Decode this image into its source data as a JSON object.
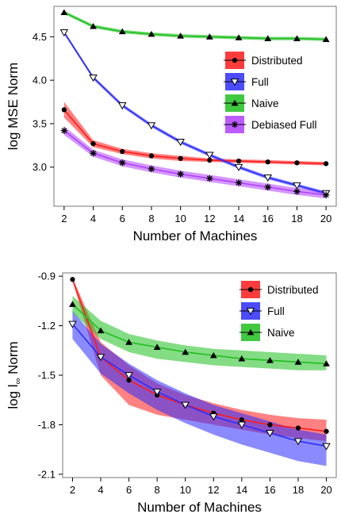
{
  "chart_data": [
    {
      "type": "line",
      "title": "",
      "xlabel": "Number of Machines",
      "ylabel": "log MSE Norm",
      "x": [
        2,
        4,
        6,
        8,
        10,
        12,
        14,
        16,
        18,
        20
      ],
      "xticks": [
        "2",
        "4",
        "6",
        "8",
        "10",
        "12",
        "14",
        "16",
        "18",
        "20"
      ],
      "xlim": [
        1.3,
        20.7
      ],
      "ylim": [
        2.55,
        4.85
      ],
      "yticks": [
        3.0,
        3.5,
        4.0,
        4.5
      ],
      "ytick_labels": [
        "3.0",
        "3.5",
        "4.0",
        "4.5"
      ],
      "legend_position": "right",
      "series": [
        {
          "name": "Distributed",
          "color": "#ff1a1a",
          "marker": "circle",
          "values": [
            3.66,
            3.27,
            3.18,
            3.13,
            3.1,
            3.08,
            3.07,
            3.06,
            3.05,
            3.04
          ],
          "band_upper": [
            3.75,
            3.31,
            3.21,
            3.16,
            3.13,
            3.1,
            3.09,
            3.08,
            3.07,
            3.06
          ],
          "band_lower": [
            3.57,
            3.23,
            3.15,
            3.1,
            3.07,
            3.06,
            3.05,
            3.04,
            3.03,
            3.02
          ]
        },
        {
          "name": "Full",
          "color": "#2b2bff",
          "marker": "triangle-down",
          "values": [
            4.55,
            4.03,
            3.71,
            3.48,
            3.29,
            3.14,
            3.0,
            2.88,
            2.79,
            2.7
          ],
          "band_upper": [
            4.57,
            4.05,
            3.73,
            3.5,
            3.31,
            3.16,
            3.02,
            2.9,
            2.81,
            2.72
          ],
          "band_lower": [
            4.53,
            4.01,
            3.69,
            3.46,
            3.27,
            3.12,
            2.98,
            2.86,
            2.77,
            2.68
          ]
        },
        {
          "name": "Naive",
          "color": "#1fbf1f",
          "marker": "triangle-up",
          "values": [
            4.78,
            4.62,
            4.56,
            4.53,
            4.51,
            4.5,
            4.49,
            4.48,
            4.48,
            4.47
          ],
          "band_upper": [
            4.8,
            4.64,
            4.58,
            4.55,
            4.53,
            4.52,
            4.51,
            4.5,
            4.5,
            4.49
          ],
          "band_lower": [
            4.76,
            4.6,
            4.54,
            4.51,
            4.49,
            4.48,
            4.47,
            4.46,
            4.46,
            4.45
          ]
        },
        {
          "name": "Debiased Full",
          "color": "#b040ff",
          "marker": "asterisk",
          "values": [
            3.42,
            3.16,
            3.05,
            2.98,
            2.92,
            2.87,
            2.82,
            2.77,
            2.72,
            2.68
          ],
          "band_upper": [
            3.47,
            3.2,
            3.09,
            3.02,
            2.96,
            2.91,
            2.86,
            2.81,
            2.76,
            2.72
          ],
          "band_lower": [
            3.37,
            3.12,
            3.01,
            2.94,
            2.88,
            2.83,
            2.78,
            2.73,
            2.68,
            2.64
          ]
        }
      ]
    },
    {
      "type": "line",
      "title": "",
      "xlabel": "Number of Machines",
      "ylabel": "log l∞ Norm",
      "x": [
        2,
        4,
        6,
        8,
        10,
        12,
        14,
        16,
        18,
        20
      ],
      "xticks": [
        "2",
        "4",
        "6",
        "8",
        "10",
        "12",
        "14",
        "16",
        "18",
        "20"
      ],
      "xlim": [
        1.3,
        20.7
      ],
      "ylim": [
        -2.12,
        -0.88
      ],
      "yticks": [
        -2.1,
        -1.8,
        -1.5,
        -1.2,
        -0.9
      ],
      "ytick_labels": [
        "-2.1",
        "-1.8",
        "-1.5",
        "-1.2",
        "-0.9"
      ],
      "legend_position": "top-right",
      "series": [
        {
          "name": "Distributed",
          "color": "#ff1a1a",
          "marker": "circle",
          "values": [
            -0.92,
            -1.39,
            -1.53,
            -1.62,
            -1.68,
            -1.73,
            -1.77,
            -1.8,
            -1.82,
            -1.84
          ],
          "band_upper": [
            -0.91,
            -1.3,
            -1.44,
            -1.55,
            -1.62,
            -1.67,
            -1.71,
            -1.74,
            -1.76,
            -1.77
          ],
          "band_lower": [
            -0.93,
            -1.5,
            -1.68,
            -1.74,
            -1.77,
            -1.8,
            -1.83,
            -1.86,
            -1.88,
            -1.9
          ]
        },
        {
          "name": "Full",
          "color": "#2b2bff",
          "marker": "triangle-down",
          "values": [
            -1.19,
            -1.39,
            -1.5,
            -1.6,
            -1.68,
            -1.75,
            -1.8,
            -1.85,
            -1.9,
            -1.93
          ],
          "band_upper": [
            -1.11,
            -1.31,
            -1.43,
            -1.53,
            -1.61,
            -1.68,
            -1.73,
            -1.78,
            -1.83,
            -1.86
          ],
          "band_lower": [
            -1.28,
            -1.49,
            -1.61,
            -1.71,
            -1.79,
            -1.86,
            -1.92,
            -1.97,
            -2.02,
            -2.05
          ]
        },
        {
          "name": "Naive",
          "color": "#1fbf1f",
          "marker": "triangle-up",
          "values": [
            -1.07,
            -1.23,
            -1.3,
            -1.33,
            -1.36,
            -1.38,
            -1.4,
            -1.41,
            -1.42,
            -1.43
          ],
          "band_upper": [
            -1.02,
            -1.17,
            -1.25,
            -1.29,
            -1.32,
            -1.34,
            -1.35,
            -1.36,
            -1.37,
            -1.38
          ],
          "band_lower": [
            -1.12,
            -1.28,
            -1.36,
            -1.4,
            -1.42,
            -1.44,
            -1.45,
            -1.46,
            -1.47,
            -1.47
          ]
        }
      ]
    }
  ]
}
